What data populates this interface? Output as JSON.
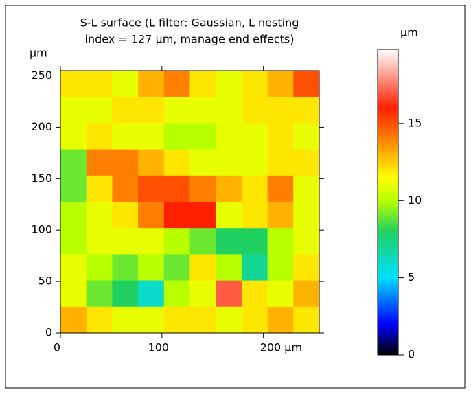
{
  "chart_data": {
    "type": "heatmap",
    "title": [
      "S-L surface (L filter: Gaussian, L nesting",
      "index = 127 μm, manage end effects)"
    ],
    "y_unit": "μm",
    "colorbar_unit": "μm",
    "xlim": [
      0,
      255
    ],
    "ylim": [
      0,
      255
    ],
    "xticks": [
      0,
      100,
      {
        "value": 200,
        "label": "200 μm"
      }
    ],
    "yticks": [
      0,
      50,
      100,
      150,
      200,
      250
    ],
    "zlim": [
      0,
      19.8
    ],
    "zticks": [
      0,
      5,
      10,
      15
    ],
    "colormap": [
      [
        0,
        "#000000"
      ],
      [
        2,
        "#0000ff"
      ],
      [
        5,
        "#00e0ff"
      ],
      [
        8,
        "#20d060"
      ],
      [
        10,
        "#b8ff00"
      ],
      [
        11.5,
        "#ffff00"
      ],
      [
        14,
        "#ff8000"
      ],
      [
        16,
        "#ff2000"
      ],
      [
        19.8,
        "#ffffff"
      ]
    ],
    "z": [
      [
        12,
        12,
        11,
        13,
        14,
        12,
        11,
        12,
        13,
        15
      ],
      [
        11,
        11,
        12,
        12,
        11,
        11,
        11,
        12,
        12,
        12
      ],
      [
        11,
        12,
        11,
        11,
        10,
        10,
        11,
        11,
        12,
        11
      ],
      [
        9,
        14,
        14,
        13,
        12,
        11,
        11,
        11,
        12,
        12
      ],
      [
        9,
        12,
        14,
        15,
        15,
        14,
        13,
        12,
        14,
        11
      ],
      [
        10,
        11,
        12,
        14,
        16,
        16,
        11,
        12,
        13,
        11
      ],
      [
        10,
        11,
        11,
        11,
        10,
        9,
        8,
        8,
        10,
        11
      ],
      [
        11,
        10,
        9,
        10,
        9,
        12,
        10,
        7,
        10,
        12
      ],
      [
        11,
        9,
        8,
        6,
        10,
        11,
        17,
        12,
        11,
        13
      ],
      [
        13,
        12,
        11,
        11,
        12,
        12,
        11,
        12,
        13,
        12
      ]
    ]
  }
}
